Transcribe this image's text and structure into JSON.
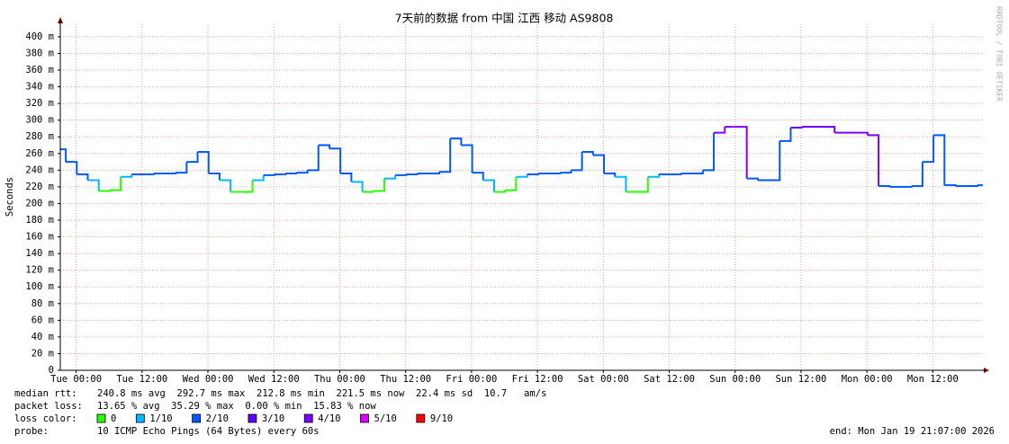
{
  "chart_data": {
    "type": "line",
    "title": "7天前的数据 from  中国 江西 移动 AS9808",
    "ylabel": "Seconds",
    "side_label": "RRDTOOL / TOBI OETIKER",
    "x": [
      0,
      2,
      4,
      6,
      8,
      10,
      12,
      14,
      16,
      18,
      20,
      22,
      24,
      26,
      28,
      30,
      32,
      34,
      36,
      38,
      40,
      42,
      44,
      46,
      48,
      50,
      52,
      54,
      56,
      58,
      60,
      62,
      64,
      66,
      68,
      70,
      72,
      74,
      76,
      78,
      80,
      82,
      84,
      86,
      88,
      90,
      92,
      94,
      96,
      98,
      100,
      102,
      104,
      106,
      108,
      110,
      112,
      114,
      116,
      118,
      120,
      122,
      124,
      126,
      128,
      130,
      132,
      134,
      136,
      138,
      140,
      142,
      144,
      146,
      148,
      150,
      152,
      154,
      156,
      158,
      160,
      162,
      164,
      166,
      168
    ],
    "xlim": [
      0,
      168
    ],
    "xticks": [
      {
        "value": 2.883,
        "label": "Tue 00:00"
      },
      {
        "value": 14.883,
        "label": "Tue 12:00"
      },
      {
        "value": 26.883,
        "label": "Wed 00:00"
      },
      {
        "value": 38.883,
        "label": "Wed 12:00"
      },
      {
        "value": 50.883,
        "label": "Thu 00:00"
      },
      {
        "value": 62.883,
        "label": "Thu 12:00"
      },
      {
        "value": 74.883,
        "label": "Fri 00:00"
      },
      {
        "value": 86.883,
        "label": "Fri 12:00"
      },
      {
        "value": 98.883,
        "label": "Sat 00:00"
      },
      {
        "value": 110.883,
        "label": "Sat 12:00"
      },
      {
        "value": 122.883,
        "label": "Sun 00:00"
      },
      {
        "value": 134.883,
        "label": "Sun 12:00"
      },
      {
        "value": 146.883,
        "label": "Mon 00:00"
      },
      {
        "value": 158.883,
        "label": "Mon 12:00"
      }
    ],
    "ylim": [
      0,
      0.415
    ],
    "yticks": [
      0,
      {
        "value": 0.02,
        "label": "20 m"
      },
      {
        "value": 0.04,
        "label": "40 m"
      },
      {
        "value": 0.06,
        "label": "60 m"
      },
      {
        "value": 0.08,
        "label": "80 m"
      },
      {
        "value": 0.1,
        "label": "100 m"
      },
      {
        "value": 0.12,
        "label": "120 m"
      },
      {
        "value": 0.14,
        "label": "140 m"
      },
      {
        "value": 0.16,
        "label": "160 m"
      },
      {
        "value": 0.18,
        "label": "180 m"
      },
      {
        "value": 0.2,
        "label": "200 m"
      },
      {
        "value": 0.22,
        "label": "220 m"
      },
      {
        "value": 0.24,
        "label": "240 m"
      },
      {
        "value": 0.26,
        "label": "260 m"
      },
      {
        "value": 0.28,
        "label": "280 m"
      },
      {
        "value": 0.3,
        "label": "300 m"
      },
      {
        "value": 0.32,
        "label": "320 m"
      },
      {
        "value": 0.34,
        "label": "340 m"
      },
      {
        "value": 0.36,
        "label": "360 m"
      },
      {
        "value": 0.38,
        "label": "380 m"
      },
      {
        "value": 0.4,
        "label": "400 m"
      }
    ],
    "grid": true,
    "series": [
      {
        "values": [
          0.265,
          0.25,
          0.235,
          0.228,
          0.215,
          0.216,
          0.232,
          0.235,
          0.235,
          0.236,
          0.236,
          0.237,
          0.25,
          0.262,
          0.236,
          0.228,
          0.214,
          0.214,
          0.228,
          0.234,
          0.235,
          0.236,
          0.237,
          0.24,
          0.27,
          0.266,
          0.236,
          0.226,
          0.214,
          0.215,
          0.23,
          0.234,
          0.235,
          0.236,
          0.236,
          0.238,
          0.278,
          0.27,
          0.237,
          0.228,
          0.214,
          0.216,
          0.232,
          0.235,
          0.236,
          0.236,
          0.237,
          0.24,
          0.262,
          0.258,
          0.236,
          0.232,
          0.214,
          0.214,
          0.232,
          0.235,
          0.235,
          0.236,
          0.236,
          0.24,
          0.285,
          0.292,
          0.292,
          0.23,
          0.228,
          0.228,
          0.275,
          0.291,
          0.292,
          0.292,
          0.292,
          0.285,
          0.285,
          0.285,
          0.282,
          0.221,
          0.22,
          0.22,
          0.221,
          0.25,
          0.282,
          0.222,
          0.221,
          0.221,
          0.222
        ],
        "loss": [
          2,
          2,
          2,
          1,
          0,
          0,
          1,
          2,
          2,
          2,
          2,
          2,
          2,
          2,
          2,
          1,
          0,
          0,
          1,
          2,
          2,
          2,
          2,
          2,
          2,
          2,
          2,
          1,
          0,
          0,
          1,
          2,
          2,
          2,
          2,
          2,
          2,
          2,
          2,
          1,
          0,
          0,
          1,
          2,
          2,
          2,
          2,
          2,
          2,
          2,
          2,
          1,
          0,
          0,
          1,
          2,
          2,
          2,
          2,
          2,
          4,
          4,
          4,
          2,
          2,
          2,
          2,
          3,
          3,
          3,
          3,
          4,
          4,
          4,
          4,
          2,
          2,
          2,
          2,
          2,
          2,
          2,
          2,
          2,
          2
        ]
      }
    ],
    "stats": [
      {
        "label": "median rtt:",
        "text": "240.8 ms avg  292.7 ms max  212.8 ms min  221.5 ms now  22.4 ms sd  10.7   am/s"
      },
      {
        "label": "packet loss:",
        "text": "13.65 % avg  35.29 % max  0.00 % min  15.83 % now"
      }
    ],
    "loss_color": {
      "label": "loss color:",
      "items": [
        {
          "label": "0",
          "value": 0,
          "color": "#26ff00"
        },
        {
          "label": "1/10",
          "value": 1,
          "color": "#00b8ff"
        },
        {
          "label": "2/10",
          "value": 2,
          "color": "#0059ff"
        },
        {
          "label": "3/10",
          "value": 3,
          "color": "#5e00ff"
        },
        {
          "label": "4/10",
          "value": 4,
          "color": "#7e00ff"
        },
        {
          "label": "5/10",
          "value": 5,
          "color": "#dd00ff"
        },
        {
          "label": "9/10",
          "value": 9,
          "color": "#ff0000"
        }
      ]
    },
    "probe": {
      "label": "probe:",
      "text": "10 ICMP Echo Pings (64 Bytes) every 60s"
    },
    "end": "end: Mon Jan 19 21:07:00 2026"
  }
}
